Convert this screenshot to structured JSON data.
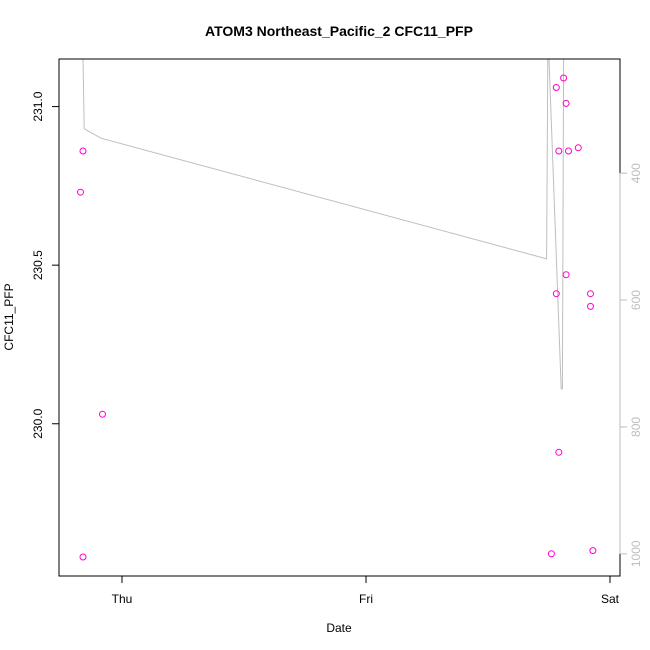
{
  "chart_data": {
    "type": "scatter",
    "title": "ATOM3 Northeast_Pacific_2 CFC11_PFP",
    "xlabel": "Date",
    "ylabel": "CFC11_PFP",
    "x_ticks": [
      "Thu",
      "Fri",
      "Sat"
    ],
    "y_ticks": [
      "230.0",
      "230.5",
      "231.0"
    ],
    "y_ticks_values": [
      230.0,
      230.5,
      231.0
    ],
    "ylim": [
      229.52,
      231.15
    ],
    "y2_ticks": [
      "400",
      "600",
      "800",
      "1000"
    ],
    "y2_ticks_values": [
      400,
      600,
      800,
      1000
    ],
    "y2lim": [
      1035,
      220
    ],
    "point_color": "#ff00cc",
    "line_color": "#bebebe",
    "series": [
      {
        "type": "scatter",
        "x_day": [
          -0.17,
          -0.16,
          -0.08,
          -0.16,
          1.76,
          1.78,
          1.79,
          1.81,
          1.82,
          1.82,
          1.83,
          1.79,
          1.78,
          1.87,
          1.92,
          1.92,
          1.93
        ],
        "values": [
          230.73,
          230.86,
          230.03,
          229.58,
          229.59,
          231.06,
          230.86,
          231.09,
          231.01,
          230.47,
          230.86,
          229.91,
          230.41,
          230.87,
          230.41,
          230.37,
          229.6
        ]
      },
      {
        "type": "line",
        "x_day": [
          -0.165,
          -0.16,
          -0.155,
          -0.085,
          1.74,
          1.745,
          1.75,
          1.8,
          1.805,
          1.81
        ],
        "values": [
          220,
          220,
          330,
          345,
          535,
          220,
          220,
          740,
          740,
          220
        ]
      }
    ]
  }
}
